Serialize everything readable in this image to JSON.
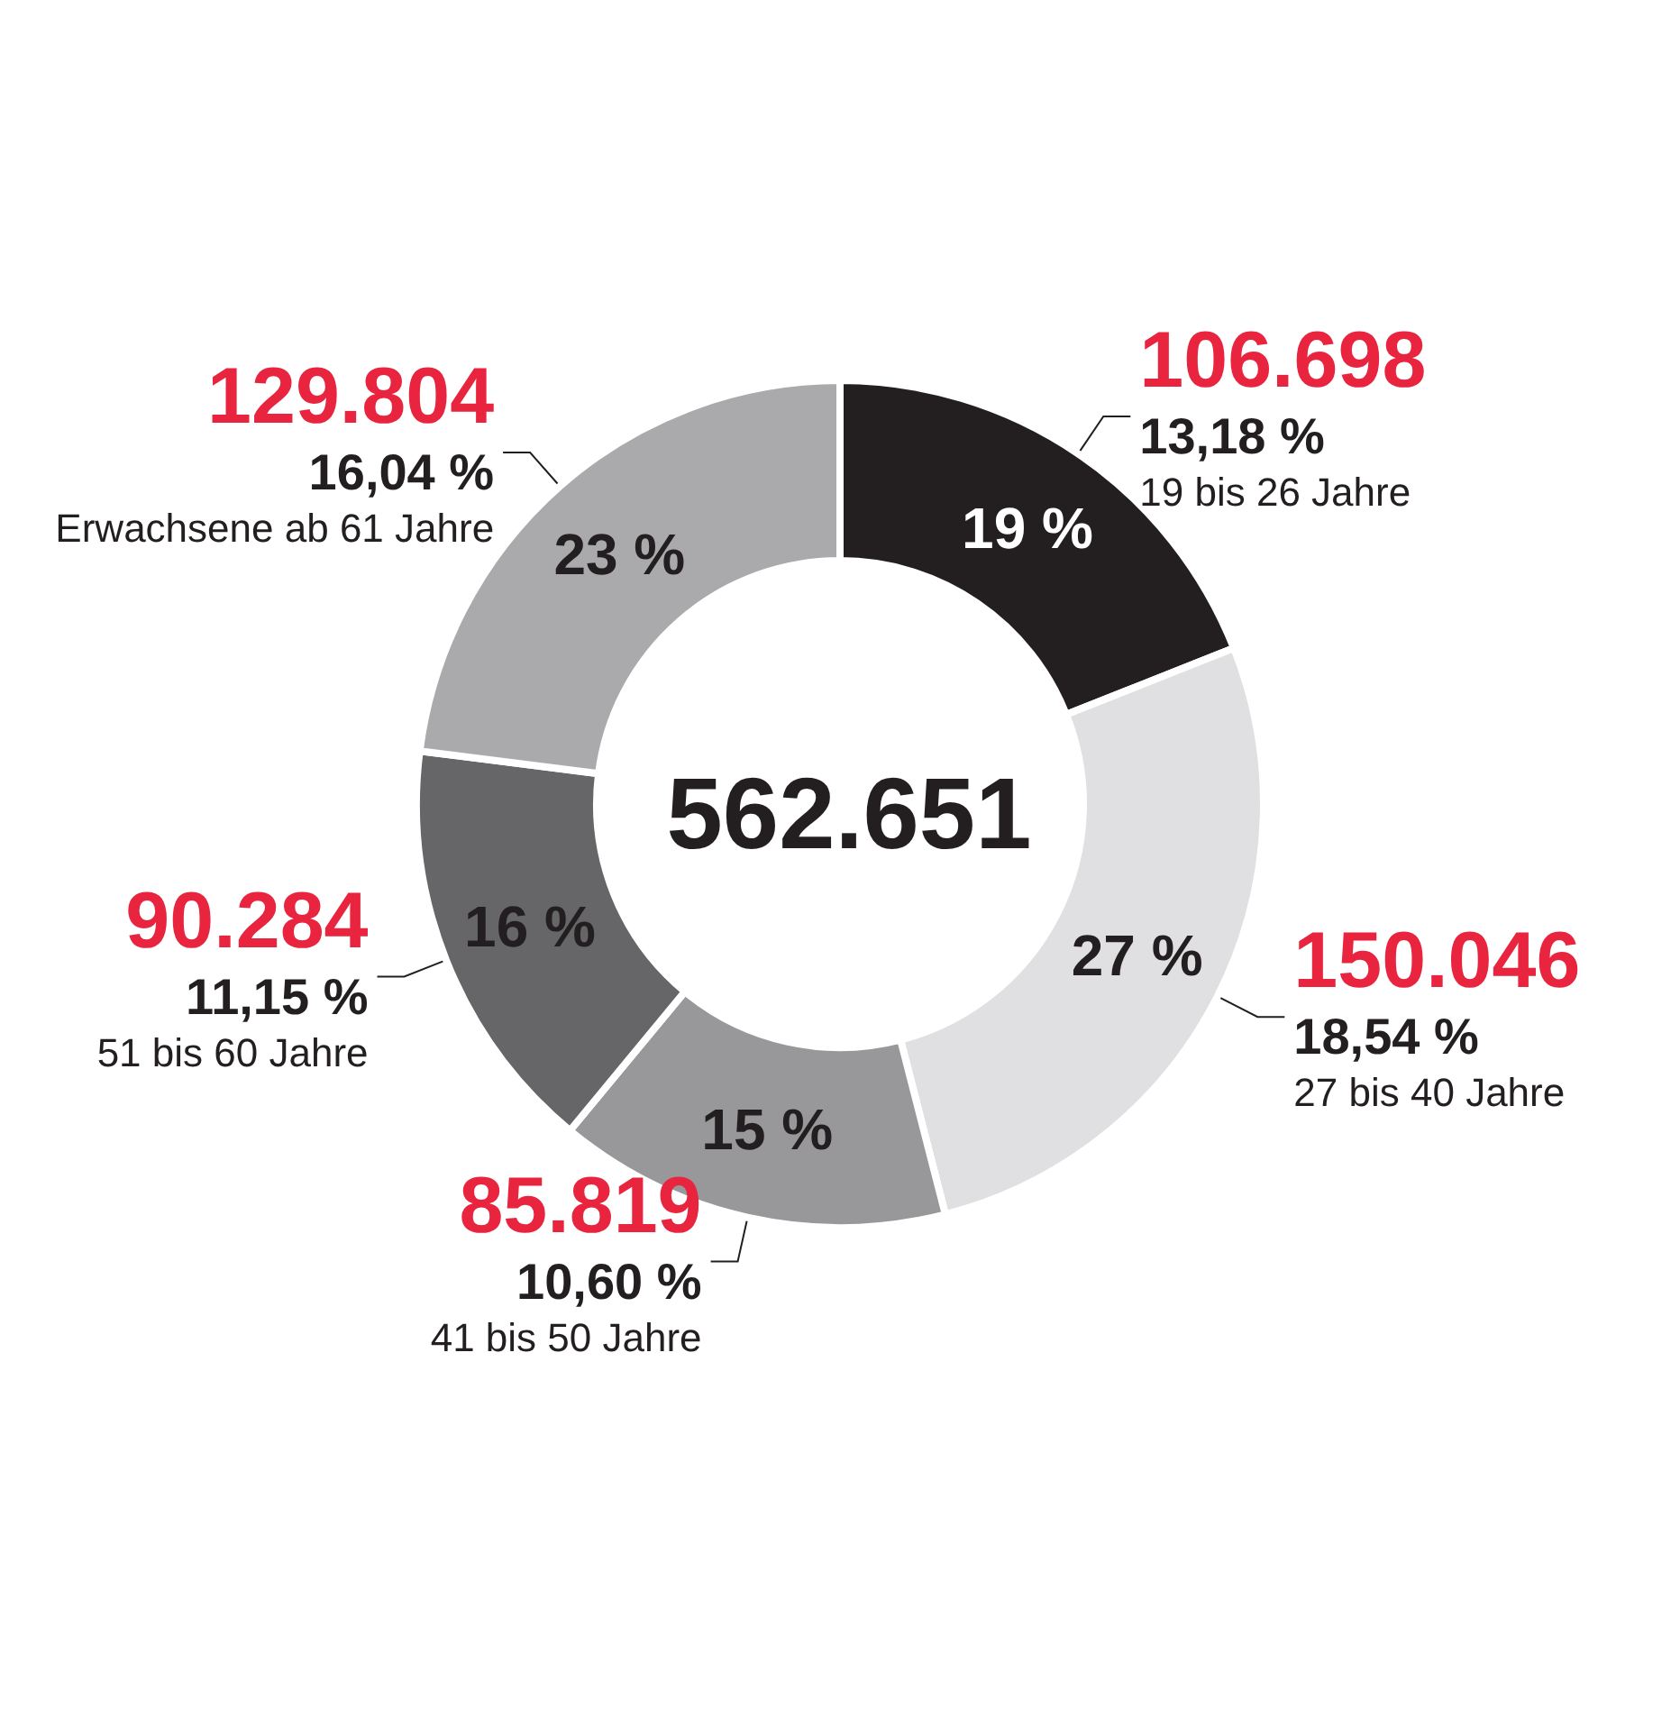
{
  "chart_data": {
    "type": "donut",
    "title": "562.651",
    "categories": [
      "19 bis 26 Jahre",
      "27 bis 40 Jahre",
      "41 bis 50 Jahre",
      "51 bis 60 Jahre",
      "Erwachsene ab 61 Jahre"
    ],
    "values": [
      19,
      27,
      15,
      16,
      23
    ],
    "colors": [
      "#231f20",
      "#e0e0e2",
      "#98989a",
      "#666668",
      "#aaaaac"
    ],
    "value_labels": [
      "19 %",
      "27 %",
      "15 %",
      "16 %",
      "23 %"
    ],
    "annotations": [
      "106.698",
      "13,18 %",
      "150.046",
      "18,54 %",
      "85.819",
      "10,60 %",
      "90.284",
      "11,15 %",
      "129.804",
      "16,04 %"
    ]
  }
}
